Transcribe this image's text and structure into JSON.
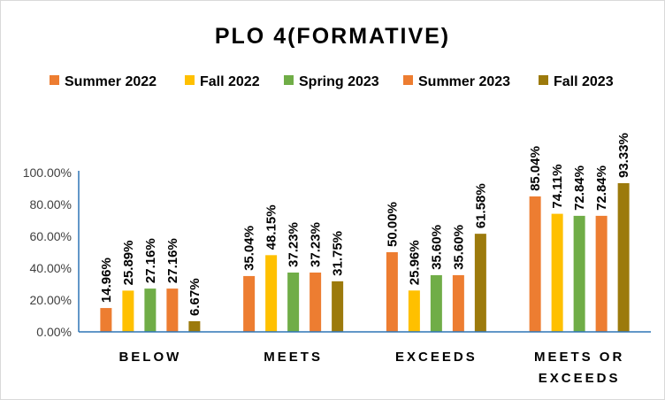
{
  "chart_data": {
    "type": "bar",
    "title": "PLO 4(FORMATIVE)",
    "categories": [
      [
        "BELOW"
      ],
      [
        "MEETS"
      ],
      [
        "EXCEEDS"
      ],
      [
        "MEETS OR",
        "EXCEEDS"
      ]
    ],
    "series": [
      {
        "name": "Summer 2022",
        "color": "#ED7D31",
        "values": [
          14.96,
          35.04,
          50.0,
          85.04
        ],
        "labels": [
          "14.96%",
          "35.04%",
          "50.00%",
          "85.04%"
        ]
      },
      {
        "name": "Fall 2022",
        "color": "#FFC000",
        "values": [
          25.89,
          48.15,
          25.96,
          74.11
        ],
        "labels": [
          "25.89%",
          "48.15%",
          "25.96%",
          "74.11%"
        ]
      },
      {
        "name": "Spring 2023",
        "color": "#70AD47",
        "values": [
          27.16,
          37.23,
          35.6,
          72.84
        ],
        "labels": [
          "27.16%",
          "37.23%",
          "35.60%",
          "72.84%"
        ]
      },
      {
        "name": "Summer 2023",
        "color": "#ED7D31",
        "values": [
          27.16,
          37.23,
          35.6,
          72.84
        ],
        "labels": [
          "27.16%",
          "37.23%",
          "35.60%",
          "72.84%"
        ]
      },
      {
        "name": "Fall 2023",
        "color": "#9C7A0C",
        "values": [
          6.67,
          31.75,
          61.58,
          93.33
        ],
        "labels": [
          "6.67%",
          "31.75%",
          "61.58%",
          "93.33%"
        ]
      }
    ],
    "yticks": [
      0,
      20,
      40,
      60,
      80,
      100
    ],
    "ytick_labels": [
      "0.00%",
      "20.00%",
      "40.00%",
      "60.00%",
      "80.00%",
      "100.00%"
    ],
    "ylim": [
      0,
      100
    ],
    "grid": false,
    "legend_position": "top",
    "axis_color": "#2E75B6"
  }
}
